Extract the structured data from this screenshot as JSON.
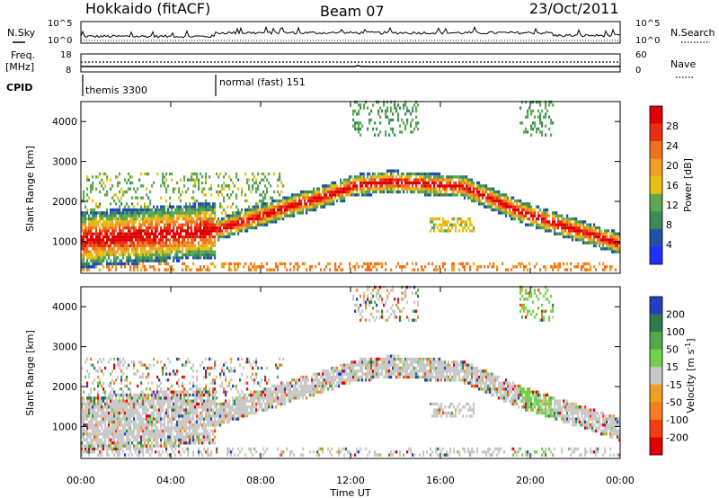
{
  "header": {
    "title": "Hokkaido (fitACF)",
    "beam": "Beam 07",
    "date": "23/Oct/2011"
  },
  "noise_panel": {
    "left_label": "N.Sky",
    "right_label": "N.Search",
    "left_ticks": [
      "10^5",
      "10^0"
    ],
    "right_ticks": [
      "10^5",
      "10^0"
    ]
  },
  "freq_panel": {
    "left_label_1": "Freq.",
    "left_label_2": "[MHz]",
    "left_ticks": [
      "18",
      "8"
    ],
    "right_label": "Nave",
    "right_ticks": [
      "60",
      "0"
    ]
  },
  "cpid_panel": {
    "label": "CPID",
    "modes": [
      "themis 3300",
      "normal (fast) 151"
    ]
  },
  "time_axis": {
    "label": "Time UT",
    "ticks": [
      "00:00",
      "04:00",
      "08:00",
      "12:00",
      "16:00",
      "20:00",
      "00:00"
    ]
  },
  "range_axis": {
    "label": "Slant Range [km]",
    "ticks": [
      "1000",
      "2000",
      "3000",
      "4000"
    ]
  },
  "power_colorbar": {
    "label": "Power [dB]",
    "ticks": [
      "4",
      "8",
      "12",
      "16",
      "20",
      "24",
      "28"
    ],
    "colors": [
      "#1f2fff",
      "#2050a8",
      "#3a8a5a",
      "#5aa850",
      "#e8c010",
      "#f0a020",
      "#f07020",
      "#e83010",
      "#e00000"
    ]
  },
  "velocity_colorbar": {
    "label_main": "Velocity [m s",
    "label_sup": "-1",
    "label_end": "]",
    "ticks": [
      "200",
      "100",
      "50",
      "15",
      "-15",
      "-50",
      "-100",
      "-200"
    ],
    "colors": [
      "#2040c0",
      "#2e7a4a",
      "#56a84a",
      "#6fd24a",
      "#c8c8c8",
      "#f0a020",
      "#f08020",
      "#f04010",
      "#e00000"
    ]
  },
  "chart_data": [
    {
      "type": "heatmap",
      "title": "Power",
      "xlabel": "Time UT",
      "ylabel": "Slant Range [km]",
      "colorbar_label": "Power [dB]",
      "xlim": [
        0,
        24
      ],
      "ylim": [
        200,
        4500
      ],
      "x_ticks": [
        "00:00",
        "04:00",
        "08:00",
        "12:00",
        "16:00",
        "20:00",
        "00:00"
      ],
      "y_ticks": [
        1000,
        2000,
        3000,
        4000
      ],
      "colorbar_ticks": [
        4,
        8,
        12,
        16,
        20,
        24,
        28
      ]
    },
    {
      "type": "heatmap",
      "title": "Velocity",
      "xlabel": "Time UT",
      "ylabel": "Slant Range [km]",
      "colorbar_label": "Velocity [m s-1]",
      "xlim": [
        0,
        24
      ],
      "ylim": [
        200,
        4500
      ],
      "x_ticks": [
        "00:00",
        "04:00",
        "08:00",
        "12:00",
        "16:00",
        "20:00",
        "00:00"
      ],
      "y_ticks": [
        1000,
        2000,
        3000,
        4000
      ],
      "colorbar_ticks": [
        200,
        100,
        50,
        15,
        -15,
        -50,
        -100,
        -200
      ]
    }
  ]
}
